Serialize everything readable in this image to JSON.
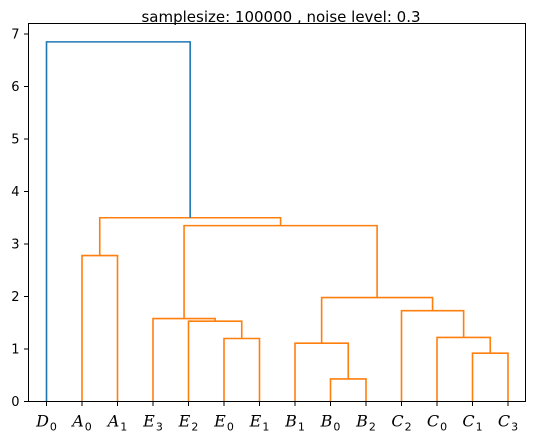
{
  "chart_data": {
    "type": "dendrogram",
    "title": "samplesize: 100000 , noise level: 0.3",
    "xlabel": "",
    "ylabel": "",
    "ylim": [
      0,
      7.2
    ],
    "yticks": [
      0,
      1,
      2,
      3,
      4,
      5,
      6,
      7
    ],
    "grid": false,
    "colors": {
      "root_link": "#1f77b4",
      "cluster": "#ff7f0e",
      "axes": "#000000"
    },
    "leaves": [
      {
        "letter": "D",
        "index": "0"
      },
      {
        "letter": "A",
        "index": "0"
      },
      {
        "letter": "A",
        "index": "1"
      },
      {
        "letter": "E",
        "index": "3"
      },
      {
        "letter": "E",
        "index": "2"
      },
      {
        "letter": "E",
        "index": "0"
      },
      {
        "letter": "E",
        "index": "1"
      },
      {
        "letter": "B",
        "index": "1"
      },
      {
        "letter": "B",
        "index": "0"
      },
      {
        "letter": "B",
        "index": "2"
      },
      {
        "letter": "C",
        "index": "2"
      },
      {
        "letter": "C",
        "index": "0"
      },
      {
        "letter": "C",
        "index": "1"
      },
      {
        "letter": "C",
        "index": "3"
      }
    ],
    "merges": [
      {
        "left": "A0",
        "right": "A1",
        "height": 2.78,
        "color": "cluster"
      },
      {
        "left": "E0",
        "right": "E1",
        "height": 1.2,
        "color": "cluster"
      },
      {
        "left": "E2",
        "right": "E0-E1",
        "height": 1.53,
        "color": "cluster"
      },
      {
        "left": "E3",
        "right": "E2-E0-E1",
        "height": 1.58,
        "color": "cluster"
      },
      {
        "left": "B0",
        "right": "B2",
        "height": 0.43,
        "color": "cluster"
      },
      {
        "left": "B1",
        "right": "B0-B2",
        "height": 1.11,
        "color": "cluster"
      },
      {
        "left": "C1",
        "right": "C3",
        "height": 0.92,
        "color": "cluster"
      },
      {
        "left": "C0",
        "right": "C1-C3",
        "height": 1.22,
        "color": "cluster"
      },
      {
        "left": "C2",
        "right": "C0-C1-C3",
        "height": 1.73,
        "color": "cluster"
      },
      {
        "left": "B-group",
        "right": "C-group",
        "height": 1.98,
        "color": "cluster"
      },
      {
        "left": "E-group",
        "right": "BC-group",
        "height": 3.35,
        "color": "cluster"
      },
      {
        "left": "A-group",
        "right": "EBC-group",
        "height": 3.5,
        "color": "cluster"
      },
      {
        "left": "D0",
        "right": "AEBC-group",
        "height": 6.85,
        "color": "root_link"
      }
    ]
  }
}
